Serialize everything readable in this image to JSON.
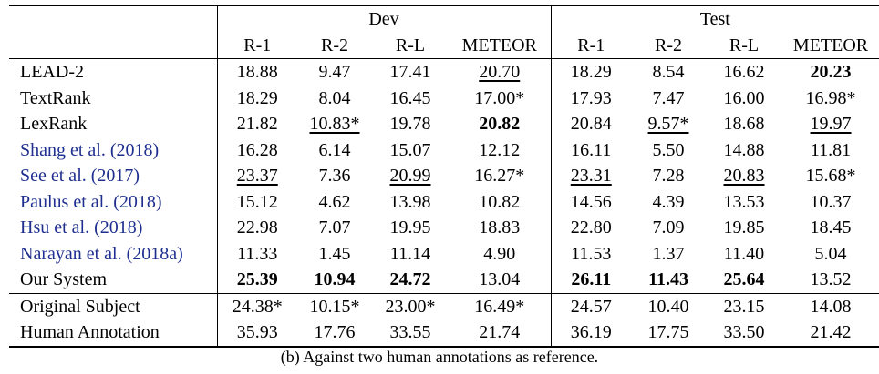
{
  "header": {
    "dev_label": "Dev",
    "test_label": "Test",
    "metrics": [
      "R-1",
      "R-2",
      "R-L",
      "METEOR",
      "R-1",
      "R-2",
      "R-L",
      "METEOR"
    ]
  },
  "rows": [
    {
      "name": "LEAD-2",
      "cite": false,
      "values": [
        "18.88",
        "9.47",
        "17.41",
        "20.70",
        "18.29",
        "8.54",
        "16.62",
        "20.23"
      ]
    },
    {
      "name": "TextRank",
      "cite": false,
      "values": [
        "18.29",
        "8.04",
        "16.45",
        "17.00*",
        "17.93",
        "7.47",
        "16.00",
        "16.98*"
      ]
    },
    {
      "name": "LexRank",
      "cite": false,
      "values": [
        "21.82",
        "10.83*",
        "19.78",
        "20.82",
        "20.84",
        "9.57*",
        "18.68",
        "19.97"
      ]
    },
    {
      "name": "Shang et al. (2018)",
      "cite": true,
      "values": [
        "16.28",
        "6.14",
        "15.07",
        "12.12",
        "16.11",
        "5.50",
        "14.88",
        "11.81"
      ]
    },
    {
      "name": "See et al. (2017)",
      "cite": true,
      "values": [
        "23.37",
        "7.36",
        "20.99",
        "16.27*",
        "23.31",
        "7.28",
        "20.83",
        "15.68*"
      ]
    },
    {
      "name": "Paulus et al. (2018)",
      "cite": true,
      "values": [
        "15.12",
        "4.62",
        "13.98",
        "10.82",
        "14.56",
        "4.39",
        "13.53",
        "10.37"
      ]
    },
    {
      "name": "Hsu et al. (2018)",
      "cite": true,
      "values": [
        "22.98",
        "7.07",
        "19.95",
        "18.83",
        "22.80",
        "7.09",
        "19.85",
        "18.45"
      ]
    },
    {
      "name": "Narayan et al. (2018a)",
      "cite": true,
      "values": [
        "11.33",
        "1.45",
        "11.14",
        "4.90",
        "11.53",
        "1.37",
        "11.40",
        "5.04"
      ]
    },
    {
      "name": "Our System",
      "cite": false,
      "values": [
        "25.39",
        "10.94",
        "24.72",
        "13.04",
        "26.11",
        "11.43",
        "25.64",
        "13.52"
      ]
    },
    {
      "name": "Original Subject",
      "cite": false,
      "values": [
        "24.38*",
        "10.15*",
        "23.00*",
        "16.49*",
        "24.57",
        "10.40",
        "23.15",
        "14.08"
      ]
    },
    {
      "name": "Human Annotation",
      "cite": false,
      "values": [
        "35.93",
        "17.76",
        "33.55",
        "21.74",
        "36.19",
        "17.75",
        "33.50",
        "21.42"
      ]
    }
  ],
  "caption": "(b) Against two human annotations as reference."
}
